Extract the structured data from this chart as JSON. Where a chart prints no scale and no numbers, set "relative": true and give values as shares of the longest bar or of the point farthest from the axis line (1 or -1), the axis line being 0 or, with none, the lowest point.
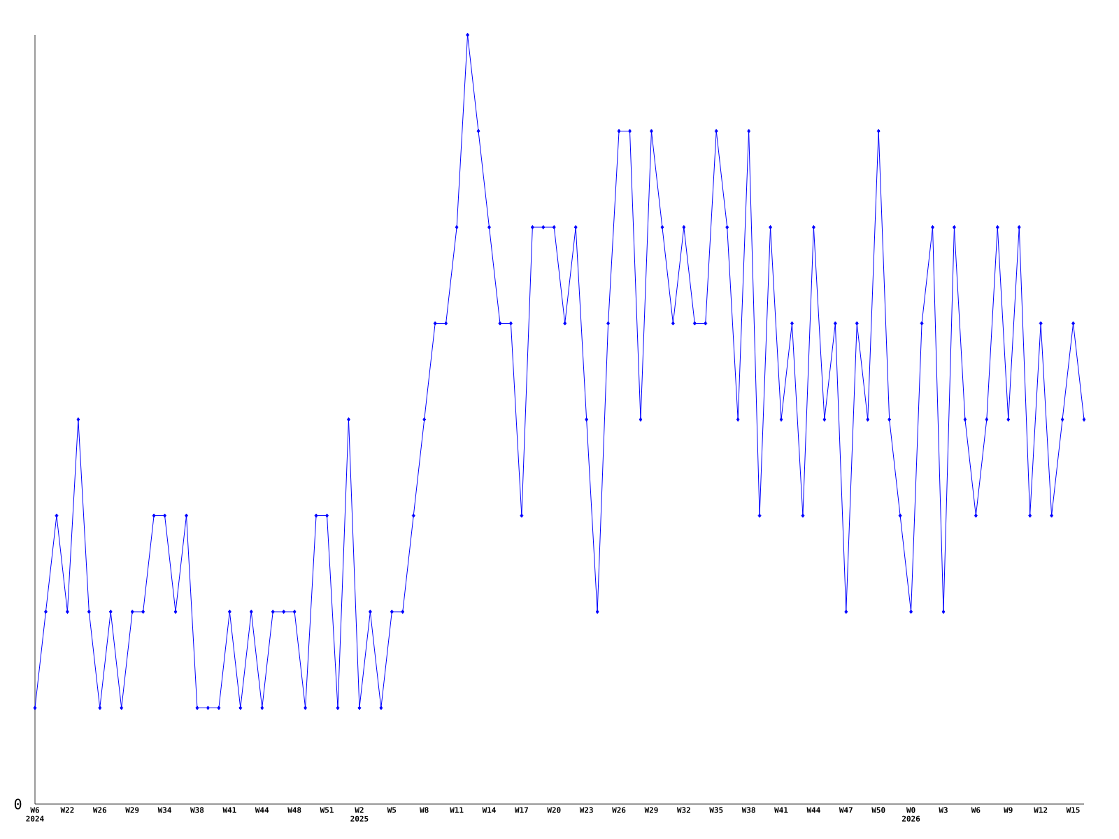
{
  "chart_data": {
    "type": "line",
    "relative": true,
    "color": "#0000ff",
    "marker": "diamond",
    "line_style": "solid",
    "categories": [
      "W6 2024",
      null,
      null,
      "W22",
      null,
      null,
      "W26",
      null,
      null,
      "W29",
      null,
      null,
      "W34",
      null,
      null,
      "W38",
      null,
      null,
      "W41",
      null,
      null,
      "W44",
      null,
      null,
      "W48",
      null,
      null,
      "W51",
      null,
      null,
      "W2 2025",
      null,
      null,
      "W5",
      null,
      null,
      "W8",
      null,
      null,
      "W11",
      null,
      null,
      "W14",
      null,
      null,
      "W17",
      null,
      null,
      "W20",
      null,
      null,
      "W23",
      null,
      null,
      "W26",
      null,
      null,
      "W29",
      null,
      null,
      "W32",
      null,
      null,
      "W35",
      null,
      null,
      "W38",
      null,
      null,
      "W41",
      null,
      null,
      "W44",
      null,
      null,
      "W47",
      null,
      null,
      "W50",
      null,
      null,
      "W0 2026",
      null,
      null,
      "W3",
      null,
      null,
      "W6",
      null,
      null,
      "W9",
      null,
      null,
      "W12",
      null,
      null,
      "W15",
      null
    ],
    "values": [
      0.125,
      0.25,
      0.375,
      0.25,
      0.5,
      0.25,
      0.125,
      0.25,
      0.125,
      0.25,
      0.25,
      0.375,
      0.375,
      0.25,
      0.375,
      0.125,
      0.125,
      0.125,
      0.25,
      0.125,
      0.25,
      0.125,
      0.25,
      0.25,
      0.25,
      0.125,
      0.375,
      0.375,
      0.125,
      0.5,
      0.125,
      0.25,
      0.125,
      0.25,
      0.25,
      0.375,
      0.5,
      0.625,
      0.625,
      0.75,
      1,
      0.875,
      0.75,
      0.625,
      0.625,
      0.375,
      0.75,
      0.75,
      0.75,
      0.625,
      0.75,
      0.5,
      0.25,
      0.625,
      0.875,
      0.875,
      0.5,
      0.875,
      0.75,
      0.625,
      0.75,
      0.625,
      0.625,
      0.875,
      0.75,
      0.5,
      0.875,
      0.375,
      0.75,
      0.5,
      0.625,
      0.375,
      0.75,
      0.5,
      0.625,
      0.25,
      0.625,
      0.5,
      0.875,
      0.5,
      0.375,
      0.25,
      0.625,
      0.75,
      0.25,
      0.75,
      0.5,
      0.375,
      0.5,
      0.75,
      0.5,
      0.75,
      0.375,
      0.625,
      0.375,
      0.5,
      0.625,
      0.5
    ],
    "annotations": [
      "0"
    ]
  }
}
